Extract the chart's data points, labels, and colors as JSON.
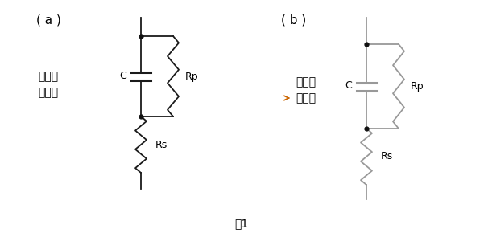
{
  "bg_color": "#ffffff",
  "line_color_a": "#1a1a1a",
  "line_color_b": "#999999",
  "dot_color": "#111111",
  "label_a": "( a )",
  "label_b": "( b )",
  "text_a1": "小电容",
  "text_a2": "大阻抗",
  "text_b1": "大电容",
  "text_b2": "低阻抗",
  "C_label": "C",
  "Rp_label": "Rp",
  "Rs_label": "Rs",
  "fig_label": "图1",
  "fig_width": 6.01,
  "fig_height": 2.95,
  "dpi": 100,
  "orange_arrow_color": "#cc6600"
}
